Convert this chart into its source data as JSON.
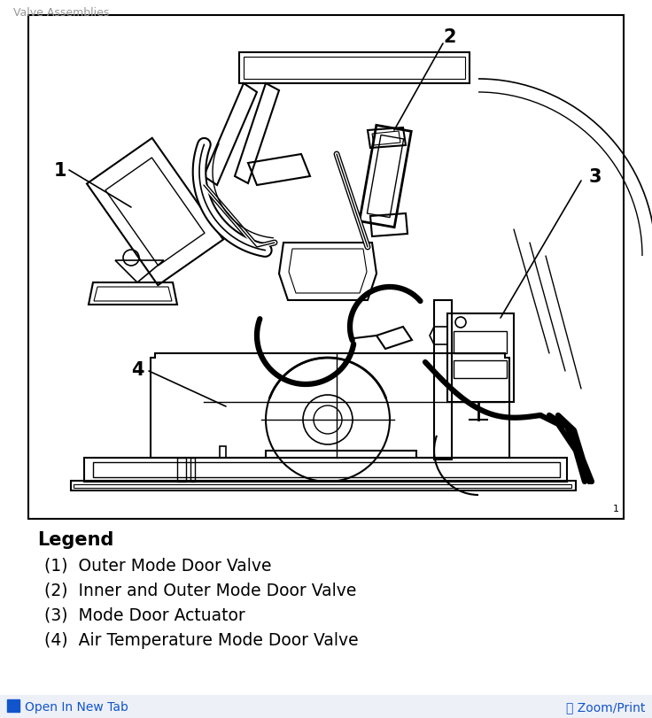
{
  "bg_color": "#ffffff",
  "line_color": "#000000",
  "legend_title": "Legend",
  "legend_items": [
    "(1)  Outer Mode Door Valve",
    "(2)  Inner and Outer Mode Door Valve",
    "(3)  Mode Door Actuator",
    "(4)  Air Temperature Mode Door Valve"
  ],
  "footer_left": "Open In New Tab",
  "footer_right": "Zoom/Print",
  "footer_color": "#1155cc",
  "footer_bg": "#eef0f8",
  "fig_width": 7.36,
  "fig_height": 8.12,
  "title_text": "Valve Assemblies",
  "title_color": "#999999"
}
